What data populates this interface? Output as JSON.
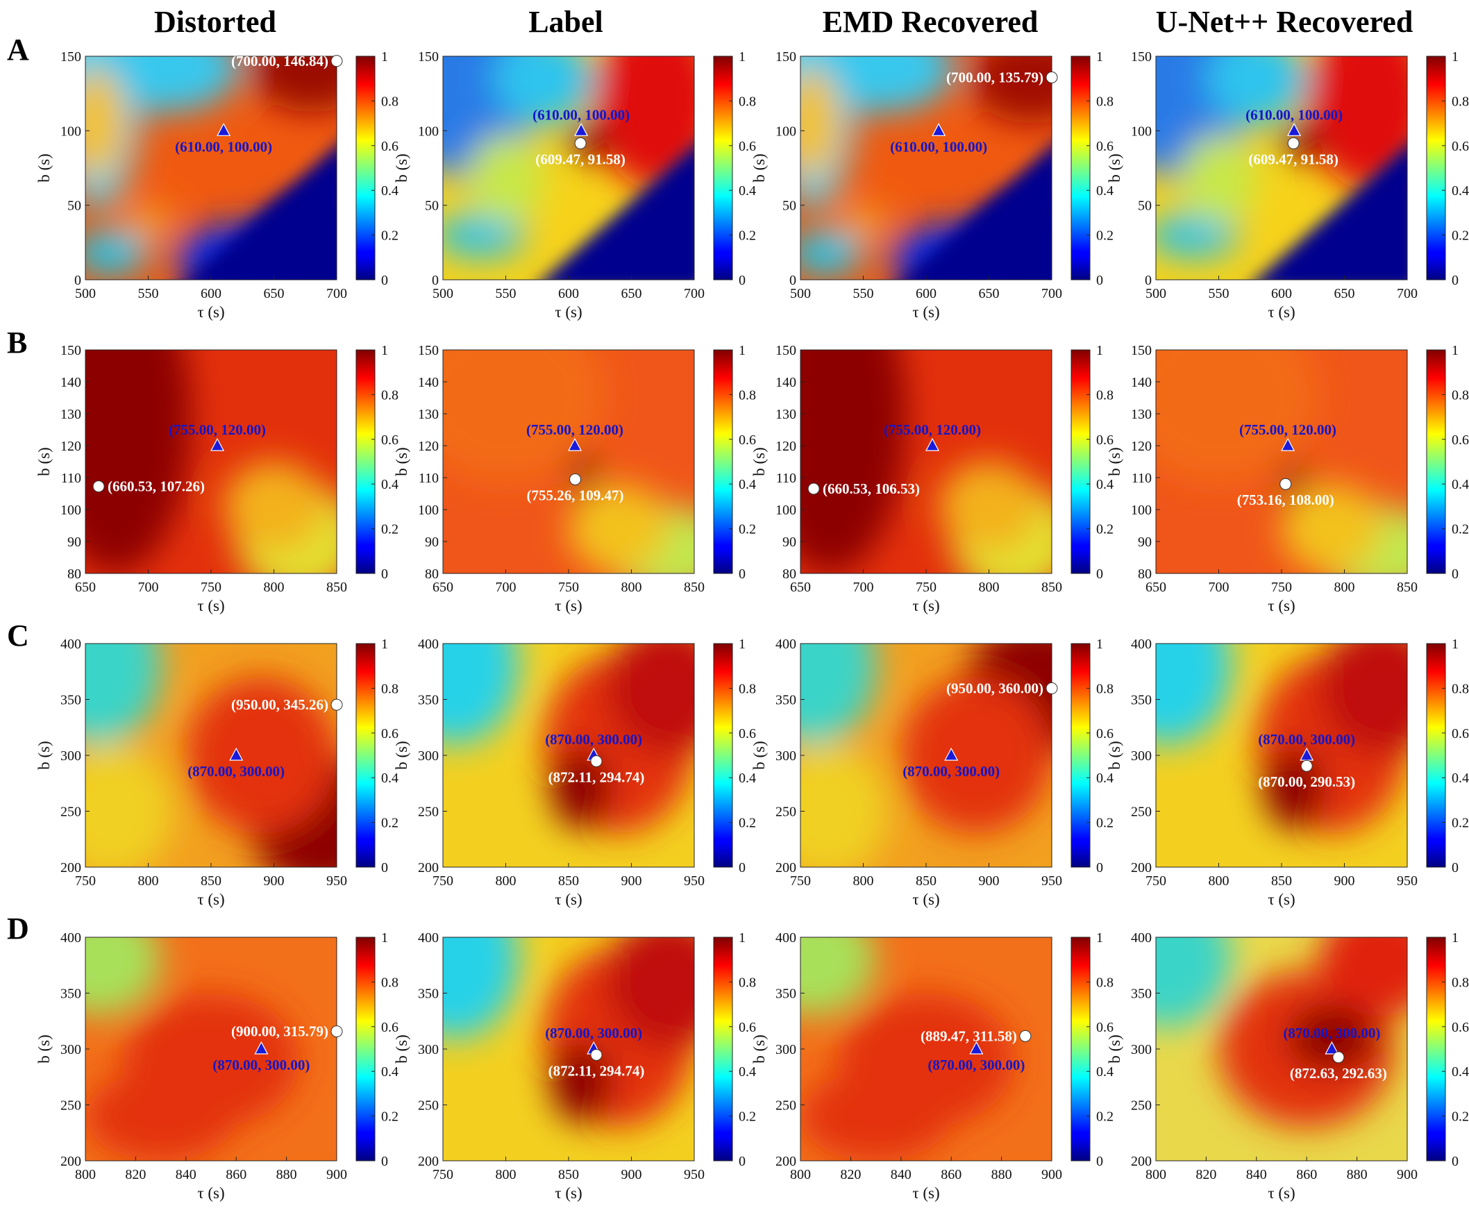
{
  "columns": [
    {
      "title": "Distorted"
    },
    {
      "title": "Label"
    },
    {
      "title": "EMD Recovered"
    },
    {
      "title": "U-Net++ Recovered"
    }
  ],
  "colorbar": {
    "min": 0,
    "max": 1,
    "ticks": [
      "0",
      "0.2",
      "0.4",
      "0.6",
      "0.8",
      "1"
    ]
  },
  "colors": {
    "true_marker": "#1a1adb",
    "true_label": "#1515c8",
    "est_marker": "#ffffff",
    "est_label": "#ffffff"
  },
  "icons": {
    "true_marker": "triangle-icon",
    "est_marker": "circle-icon"
  },
  "chart_data": [
    {
      "type": "heatmap",
      "row": "A",
      "col": "Distorted",
      "xlabel": "τ (s)",
      "ylabel": "b (s)",
      "xlim": [
        500,
        700
      ],
      "ylim": [
        0,
        150
      ],
      "xticks": [
        "500",
        "550",
        "600",
        "650",
        "700"
      ],
      "yticks": [
        "0",
        "50",
        "100",
        "150"
      ],
      "true": {
        "x": 610,
        "y": 100,
        "label": "(610.00, 100.00)"
      },
      "est": {
        "x": 700,
        "y": 146.84,
        "label": "(700.00, 146.84)"
      }
    },
    {
      "type": "heatmap",
      "row": "A",
      "col": "Label",
      "xlabel": "τ (s)",
      "ylabel": "b (s)",
      "xlim": [
        500,
        700
      ],
      "ylim": [
        0,
        150
      ],
      "xticks": [
        "500",
        "550",
        "600",
        "650",
        "700"
      ],
      "yticks": [
        "0",
        "50",
        "100",
        "150"
      ],
      "true": {
        "x": 610,
        "y": 100,
        "label": "(610.00, 100.00)"
      },
      "est": {
        "x": 609.47,
        "y": 91.58,
        "label": "(609.47, 91.58)"
      }
    },
    {
      "type": "heatmap",
      "row": "A",
      "col": "EMD Recovered",
      "xlabel": "τ (s)",
      "ylabel": "b (s)",
      "xlim": [
        500,
        700
      ],
      "ylim": [
        0,
        150
      ],
      "xticks": [
        "500",
        "550",
        "600",
        "650",
        "700"
      ],
      "yticks": [
        "0",
        "50",
        "100",
        "150"
      ],
      "true": {
        "x": 610,
        "y": 100,
        "label": "(610.00, 100.00)"
      },
      "est": {
        "x": 700,
        "y": 135.79,
        "label": "(700.00, 135.79)"
      }
    },
    {
      "type": "heatmap",
      "row": "A",
      "col": "U-Net++ Recovered",
      "xlabel": "τ (s)",
      "ylabel": "b (s)",
      "xlim": [
        500,
        700
      ],
      "ylim": [
        0,
        150
      ],
      "xticks": [
        "500",
        "550",
        "600",
        "650",
        "700"
      ],
      "yticks": [
        "0",
        "50",
        "100",
        "150"
      ],
      "true": {
        "x": 610,
        "y": 100,
        "label": "(610.00, 100.00)"
      },
      "est": {
        "x": 609.47,
        "y": 91.58,
        "label": "(609.47, 91.58)"
      }
    },
    {
      "type": "heatmap",
      "row": "B",
      "col": "Distorted",
      "xlabel": "τ (s)",
      "ylabel": "b (s)",
      "xlim": [
        650,
        850
      ],
      "ylim": [
        80,
        150
      ],
      "xticks": [
        "650",
        "700",
        "750",
        "800",
        "850"
      ],
      "yticks": [
        "80",
        "90",
        "100",
        "110",
        "120",
        "130",
        "140",
        "150"
      ],
      "true": {
        "x": 755,
        "y": 120,
        "label": "(755.00, 120.00)"
      },
      "est": {
        "x": 660.53,
        "y": 107.26,
        "label": "(660.53, 107.26)"
      }
    },
    {
      "type": "heatmap",
      "row": "B",
      "col": "Label",
      "xlabel": "τ (s)",
      "ylabel": "b (s)",
      "xlim": [
        650,
        850
      ],
      "ylim": [
        80,
        150
      ],
      "xticks": [
        "650",
        "700",
        "750",
        "800",
        "850"
      ],
      "yticks": [
        "80",
        "90",
        "100",
        "110",
        "120",
        "130",
        "140",
        "150"
      ],
      "true": {
        "x": 755,
        "y": 120,
        "label": "(755.00, 120.00)"
      },
      "est": {
        "x": 755.26,
        "y": 109.47,
        "label": "(755.26, 109.47)"
      }
    },
    {
      "type": "heatmap",
      "row": "B",
      "col": "EMD Recovered",
      "xlabel": "τ (s)",
      "ylabel": "b (s)",
      "xlim": [
        650,
        850
      ],
      "ylim": [
        80,
        150
      ],
      "xticks": [
        "650",
        "700",
        "750",
        "800",
        "850"
      ],
      "yticks": [
        "80",
        "90",
        "100",
        "110",
        "120",
        "130",
        "140",
        "150"
      ],
      "true": {
        "x": 755,
        "y": 120,
        "label": "(755.00, 120.00)"
      },
      "est": {
        "x": 660.53,
        "y": 106.53,
        "label": "(660.53, 106.53)"
      }
    },
    {
      "type": "heatmap",
      "row": "B",
      "col": "U-Net++ Recovered",
      "xlabel": "τ (s)",
      "ylabel": "b (s)",
      "xlim": [
        650,
        850
      ],
      "ylim": [
        80,
        150
      ],
      "xticks": [
        "650",
        "700",
        "750",
        "800",
        "850"
      ],
      "yticks": [
        "80",
        "90",
        "100",
        "110",
        "120",
        "130",
        "140",
        "150"
      ],
      "true": {
        "x": 755,
        "y": 120,
        "label": "(755.00, 120.00)"
      },
      "est": {
        "x": 753.16,
        "y": 108,
        "label": "(753.16, 108.00)"
      }
    },
    {
      "type": "heatmap",
      "row": "C",
      "col": "Distorted",
      "xlabel": "τ (s)",
      "ylabel": "b (s)",
      "xlim": [
        750,
        950
      ],
      "ylim": [
        200,
        400
      ],
      "xticks": [
        "750",
        "800",
        "850",
        "900",
        "950"
      ],
      "yticks": [
        "200",
        "250",
        "300",
        "350",
        "400"
      ],
      "true": {
        "x": 870,
        "y": 300,
        "label": "(870.00, 300.00)"
      },
      "est": {
        "x": 950,
        "y": 345.26,
        "label": "(950.00, 345.26)"
      }
    },
    {
      "type": "heatmap",
      "row": "C",
      "col": "Label",
      "xlabel": "τ (s)",
      "ylabel": "b (s)",
      "xlim": [
        750,
        950
      ],
      "ylim": [
        200,
        400
      ],
      "xticks": [
        "750",
        "800",
        "850",
        "900",
        "950"
      ],
      "yticks": [
        "200",
        "250",
        "300",
        "350",
        "400"
      ],
      "true": {
        "x": 870,
        "y": 300,
        "label": "(870.00, 300.00)"
      },
      "est": {
        "x": 872.11,
        "y": 294.74,
        "label": "(872.11, 294.74)"
      }
    },
    {
      "type": "heatmap",
      "row": "C",
      "col": "EMD Recovered",
      "xlabel": "τ (s)",
      "ylabel": "b (s)",
      "xlim": [
        750,
        950
      ],
      "ylim": [
        200,
        400
      ],
      "xticks": [
        "750",
        "800",
        "850",
        "900",
        "950"
      ],
      "yticks": [
        "200",
        "250",
        "300",
        "350",
        "400"
      ],
      "true": {
        "x": 870,
        "y": 300,
        "label": "(870.00, 300.00)"
      },
      "est": {
        "x": 950,
        "y": 360,
        "label": "(950.00, 360.00)"
      }
    },
    {
      "type": "heatmap",
      "row": "C",
      "col": "U-Net++ Recovered",
      "xlabel": "τ (s)",
      "ylabel": "b (s)",
      "xlim": [
        750,
        950
      ],
      "ylim": [
        200,
        400
      ],
      "xticks": [
        "750",
        "800",
        "850",
        "900",
        "950"
      ],
      "yticks": [
        "200",
        "250",
        "300",
        "350",
        "400"
      ],
      "true": {
        "x": 870,
        "y": 300,
        "label": "(870.00, 300.00)"
      },
      "est": {
        "x": 870,
        "y": 290.53,
        "label": "(870.00, 290.53)"
      }
    },
    {
      "type": "heatmap",
      "row": "D",
      "col": "Distorted",
      "xlabel": "τ (s)",
      "ylabel": "b (s)",
      "xlim": [
        800,
        900
      ],
      "ylim": [
        200,
        400
      ],
      "xticks": [
        "800",
        "820",
        "840",
        "860",
        "880",
        "900"
      ],
      "yticks": [
        "200",
        "250",
        "300",
        "350",
        "400"
      ],
      "true": {
        "x": 870,
        "y": 300,
        "label": "(870.00, 300.00)"
      },
      "est": {
        "x": 900,
        "y": 315.79,
        "label": "(900.00, 315.79)"
      }
    },
    {
      "type": "heatmap",
      "row": "D",
      "col": "Label",
      "xlabel": "τ (s)",
      "ylabel": "b (s)",
      "xlim": [
        750,
        950
      ],
      "ylim": [
        200,
        400
      ],
      "xticks": [
        "750",
        "800",
        "850",
        "900",
        "950"
      ],
      "yticks": [
        "200",
        "250",
        "300",
        "350",
        "400"
      ],
      "true": {
        "x": 870,
        "y": 300,
        "label": "(870.00, 300.00)"
      },
      "est": {
        "x": 872.11,
        "y": 294.74,
        "label": "(872.11, 294.74)"
      }
    },
    {
      "type": "heatmap",
      "row": "D",
      "col": "EMD Recovered",
      "xlabel": "τ (s)",
      "ylabel": "b (s)",
      "xlim": [
        800,
        900
      ],
      "ylim": [
        200,
        400
      ],
      "xticks": [
        "800",
        "820",
        "840",
        "860",
        "880",
        "900"
      ],
      "yticks": [
        "200",
        "250",
        "300",
        "350",
        "400"
      ],
      "true": {
        "x": 870,
        "y": 300,
        "label": "(870.00, 300.00)"
      },
      "est": {
        "x": 889.47,
        "y": 311.58,
        "label": "(889.47, 311.58)"
      }
    },
    {
      "type": "heatmap",
      "row": "D",
      "col": "U-Net++ Recovered",
      "xlabel": "τ (s)",
      "ylabel": "b (s)",
      "xlim": [
        800,
        900
      ],
      "ylim": [
        200,
        400
      ],
      "xticks": [
        "800",
        "820",
        "840",
        "860",
        "880",
        "900"
      ],
      "yticks": [
        "200",
        "250",
        "300",
        "350",
        "400"
      ],
      "true": {
        "x": 870,
        "y": 300,
        "label": "(870.00, 300.00)"
      },
      "est": {
        "x": 872.63,
        "y": 292.63,
        "label": "(872.63, 292.63)"
      }
    }
  ]
}
